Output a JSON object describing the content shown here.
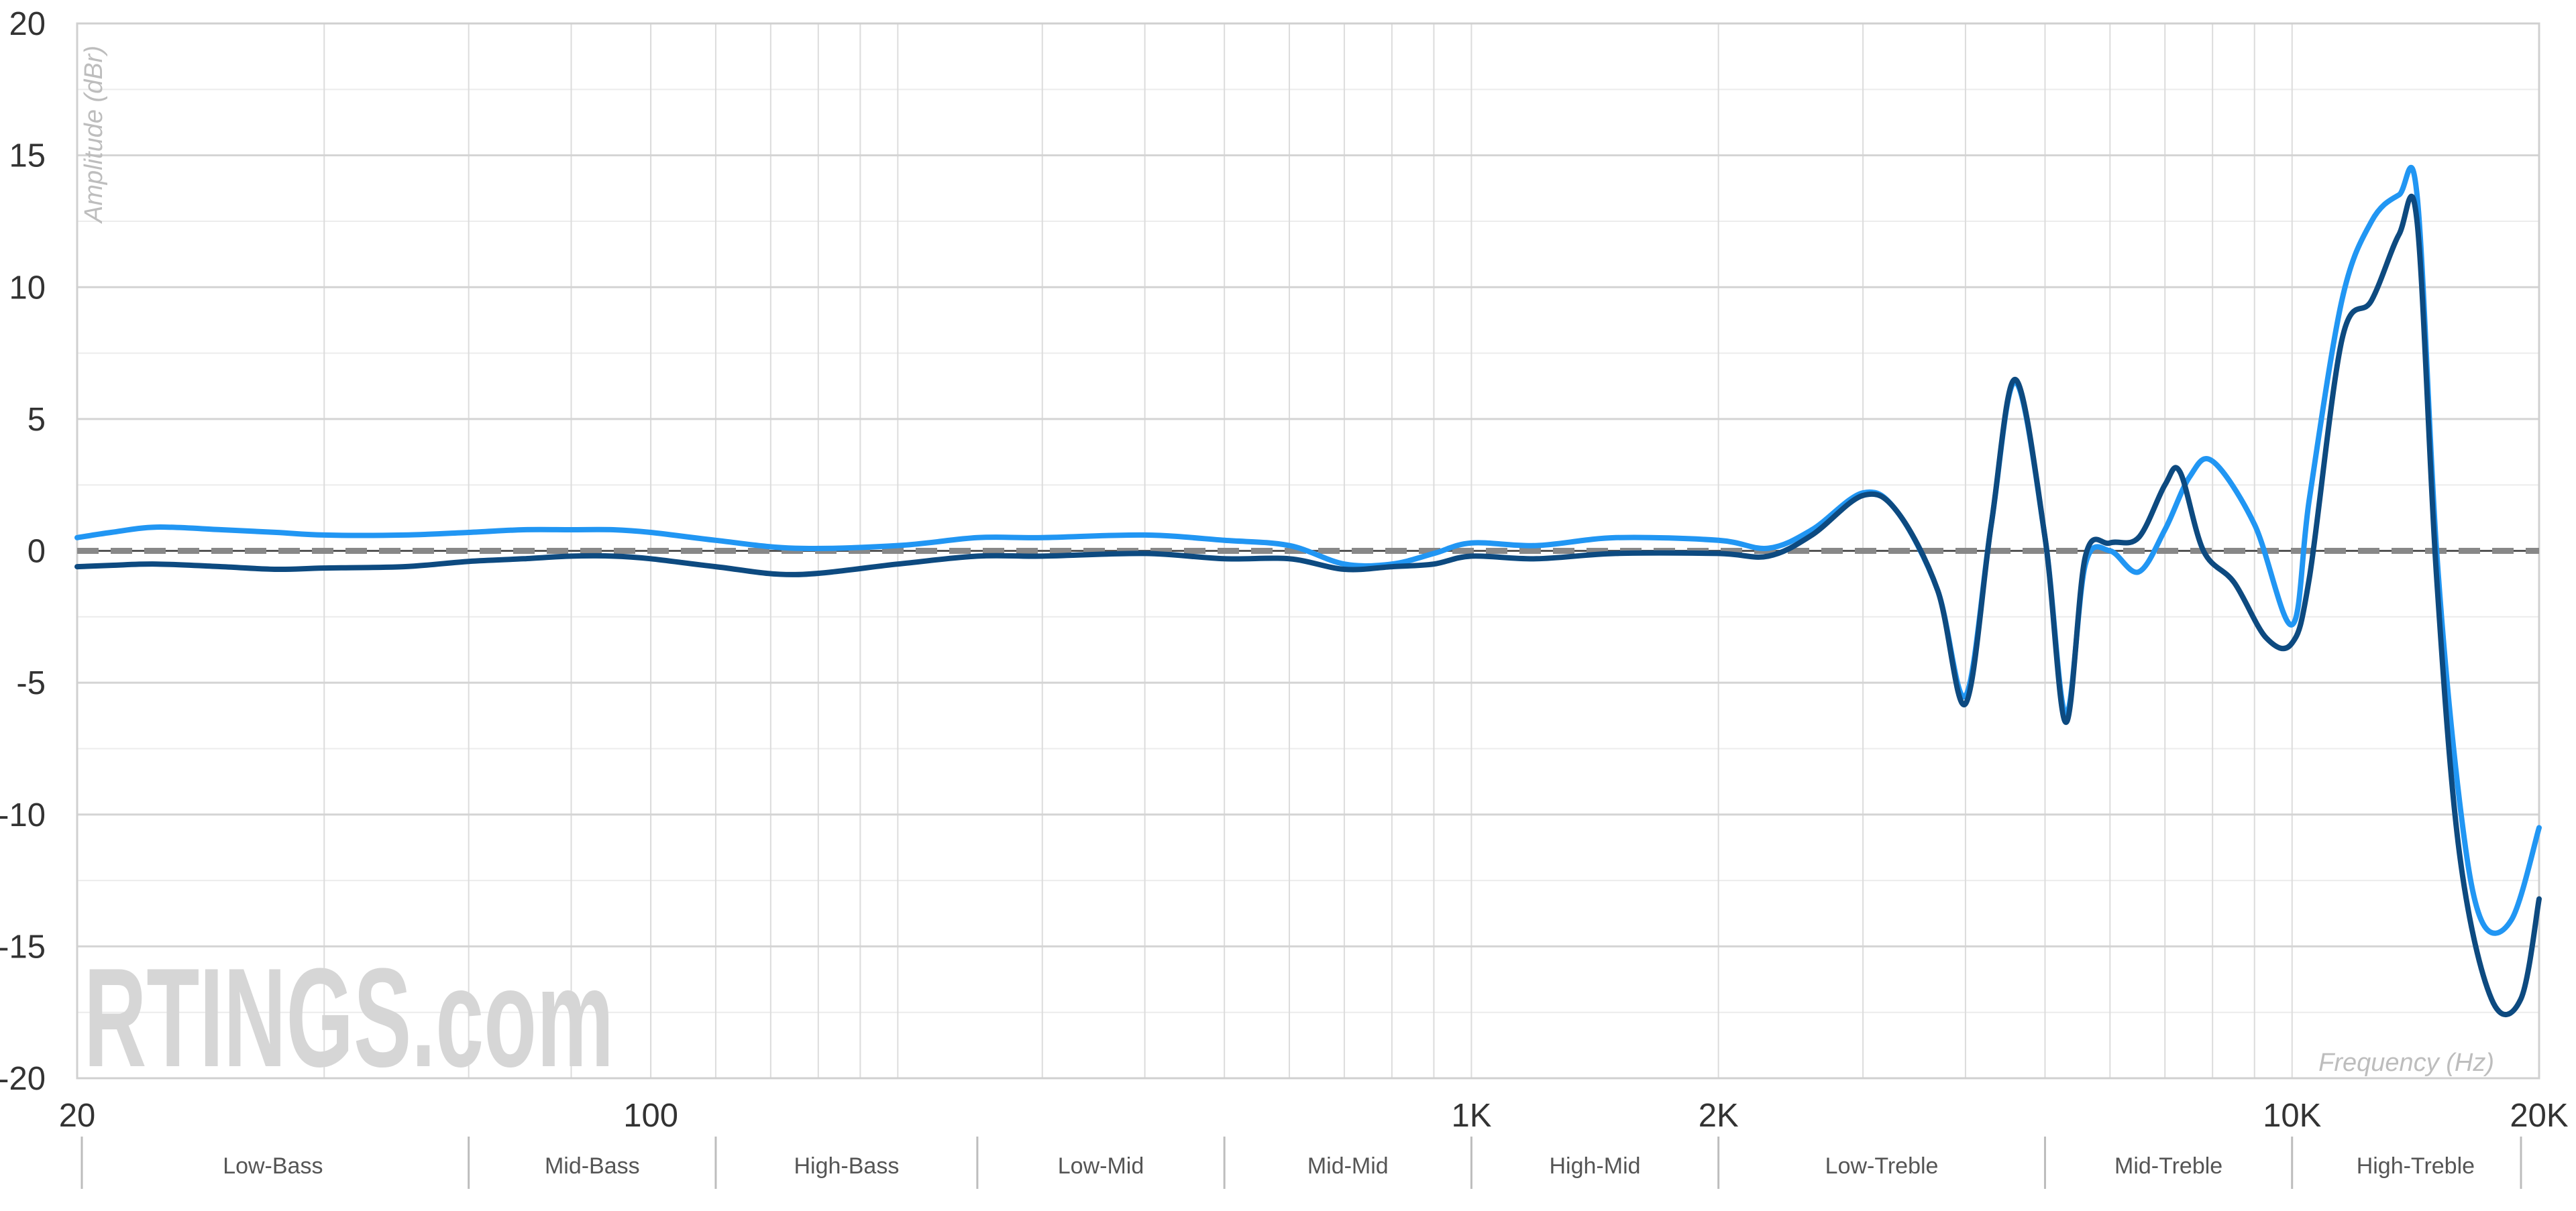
{
  "chart_data": {
    "type": "line",
    "xlabel": "Frequency (Hz)",
    "ylabel": "Amplitude (dBr)",
    "x_scale": "log",
    "xlim": [
      20,
      20000
    ],
    "ylim": [
      -20,
      20
    ],
    "grid": true,
    "watermark": "RTINGS.com",
    "y_ticks": [
      {
        "value": 20,
        "label": "20"
      },
      {
        "value": 15,
        "label": "15"
      },
      {
        "value": 10,
        "label": "10"
      },
      {
        "value": 5,
        "label": "5"
      },
      {
        "value": 0,
        "label": "0"
      },
      {
        "value": -5,
        "label": "-5"
      },
      {
        "value": -10,
        "label": "-10"
      },
      {
        "value": -15,
        "label": "-15"
      },
      {
        "value": -20,
        "label": "-20"
      }
    ],
    "x_ticks": [
      {
        "value": 20,
        "label": "20"
      },
      {
        "value": 100,
        "label": "100"
      },
      {
        "value": 1000,
        "label": "1K"
      },
      {
        "value": 2000,
        "label": "2K"
      },
      {
        "value": 10000,
        "label": "10K"
      },
      {
        "value": 20000,
        "label": "20K"
      }
    ],
    "bands": [
      {
        "label": "Low-Bass",
        "from": 20,
        "to": 60
      },
      {
        "label": "Mid-Bass",
        "from": 60,
        "to": 120
      },
      {
        "label": "High-Bass",
        "from": 120,
        "to": 250
      },
      {
        "label": "Low-Mid",
        "from": 250,
        "to": 500
      },
      {
        "label": "Mid-Mid",
        "from": 500,
        "to": 1000
      },
      {
        "label": "High-Mid",
        "from": 1000,
        "to": 2000
      },
      {
        "label": "Low-Treble",
        "from": 2000,
        "to": 5000
      },
      {
        "label": "Mid-Treble",
        "from": 5000,
        "to": 10000
      },
      {
        "label": "High-Treble",
        "from": 10000,
        "to": 20000
      }
    ],
    "series": [
      {
        "color": "#2196f3",
        "points": [
          [
            20,
            0.5
          ],
          [
            22,
            0.7
          ],
          [
            25,
            0.9
          ],
          [
            30,
            0.8
          ],
          [
            35,
            0.7
          ],
          [
            40,
            0.6
          ],
          [
            50,
            0.6
          ],
          [
            60,
            0.7
          ],
          [
            70,
            0.8
          ],
          [
            80,
            0.8
          ],
          [
            90,
            0.8
          ],
          [
            100,
            0.7
          ],
          [
            120,
            0.4
          ],
          [
            150,
            0.1
          ],
          [
            200,
            0.2
          ],
          [
            250,
            0.5
          ],
          [
            300,
            0.5
          ],
          [
            400,
            0.6
          ],
          [
            500,
            0.4
          ],
          [
            600,
            0.2
          ],
          [
            700,
            -0.5
          ],
          [
            800,
            -0.5
          ],
          [
            900,
            -0.1
          ],
          [
            1000,
            0.3
          ],
          [
            1200,
            0.2
          ],
          [
            1500,
            0.5
          ],
          [
            2000,
            0.4
          ],
          [
            2300,
            0.1
          ],
          [
            2600,
            0.8
          ],
          [
            3000,
            2.2
          ],
          [
            3300,
            1.5
          ],
          [
            3700,
            -1.5
          ],
          [
            4000,
            -5.5
          ],
          [
            4300,
            1.0
          ],
          [
            4600,
            6.4
          ],
          [
            5000,
            0.5
          ],
          [
            5300,
            -6.2
          ],
          [
            5600,
            -0.5
          ],
          [
            6000,
            0.0
          ],
          [
            6500,
            -0.8
          ],
          [
            7000,
            0.8
          ],
          [
            7500,
            2.8
          ],
          [
            8000,
            3.4
          ],
          [
            9000,
            1.0
          ],
          [
            10000,
            -2.8
          ],
          [
            10500,
            2.0
          ],
          [
            11500,
            9.5
          ],
          [
            12500,
            12.5
          ],
          [
            13500,
            13.5
          ],
          [
            14200,
            13.5
          ],
          [
            15000,
            0.0
          ],
          [
            16000,
            -9.5
          ],
          [
            17000,
            -14.0
          ],
          [
            18500,
            -14.0
          ],
          [
            20000,
            -10.5
          ]
        ]
      },
      {
        "color": "#0d4a80",
        "points": [
          [
            20,
            -0.6
          ],
          [
            22,
            -0.55
          ],
          [
            25,
            -0.5
          ],
          [
            30,
            -0.6
          ],
          [
            35,
            -0.7
          ],
          [
            40,
            -0.65
          ],
          [
            50,
            -0.6
          ],
          [
            60,
            -0.4
          ],
          [
            70,
            -0.3
          ],
          [
            80,
            -0.2
          ],
          [
            90,
            -0.2
          ],
          [
            100,
            -0.3
          ],
          [
            120,
            -0.6
          ],
          [
            150,
            -0.9
          ],
          [
            200,
            -0.5
          ],
          [
            250,
            -0.2
          ],
          [
            300,
            -0.2
          ],
          [
            400,
            -0.1
          ],
          [
            500,
            -0.3
          ],
          [
            600,
            -0.3
          ],
          [
            700,
            -0.7
          ],
          [
            800,
            -0.6
          ],
          [
            900,
            -0.5
          ],
          [
            1000,
            -0.2
          ],
          [
            1200,
            -0.3
          ],
          [
            1500,
            -0.1
          ],
          [
            2000,
            -0.1
          ],
          [
            2300,
            -0.2
          ],
          [
            2600,
            0.6
          ],
          [
            3000,
            2.1
          ],
          [
            3300,
            1.5
          ],
          [
            3700,
            -1.5
          ],
          [
            4000,
            -5.8
          ],
          [
            4300,
            1.0
          ],
          [
            4600,
            6.5
          ],
          [
            5000,
            0.5
          ],
          [
            5300,
            -6.5
          ],
          [
            5600,
            -0.2
          ],
          [
            6000,
            0.3
          ],
          [
            6500,
            0.5
          ],
          [
            7000,
            2.5
          ],
          [
            7300,
            3.0
          ],
          [
            7800,
            0.0
          ],
          [
            8500,
            -1.2
          ],
          [
            9300,
            -3.3
          ],
          [
            10000,
            -3.5
          ],
          [
            10500,
            -1.0
          ],
          [
            11500,
            8.0
          ],
          [
            12500,
            9.5
          ],
          [
            13500,
            12.0
          ],
          [
            14200,
            12.5
          ],
          [
            15000,
            -1.0
          ],
          [
            16000,
            -11.5
          ],
          [
            17500,
            -17.0
          ],
          [
            19000,
            -17.0
          ],
          [
            20000,
            -13.2
          ]
        ]
      }
    ],
    "target_line": {
      "value": 0,
      "style": "dashed",
      "color": "#888888"
    }
  }
}
